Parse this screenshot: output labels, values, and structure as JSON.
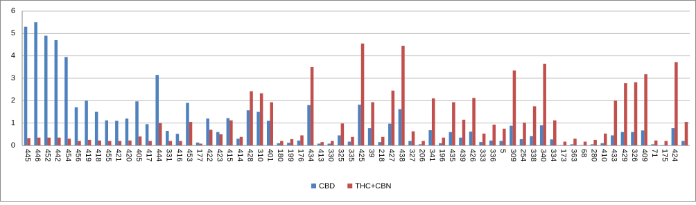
{
  "chart_data": {
    "type": "bar",
    "categories": [
      "445",
      "446",
      "452",
      "442",
      "454",
      "456",
      "419",
      "418",
      "455",
      "421",
      "420",
      "405",
      "417",
      "444",
      "331",
      "416",
      "453",
      "177",
      "422",
      "423",
      "415",
      "414",
      "428",
      "310",
      "401",
      "180",
      "199",
      "176",
      "434",
      "413",
      "330",
      "325",
      "335",
      "425",
      "39",
      "218",
      "427",
      "438",
      "327",
      "206",
      "341",
      "196",
      "435",
      "439",
      "426",
      "333",
      "336",
      "5",
      "309",
      "254",
      "338",
      "340",
      "334",
      "173",
      "363",
      "68",
      "280",
      "410",
      "433",
      "429",
      "326",
      "409",
      "71",
      "175",
      "424",
      null
    ],
    "series": [
      {
        "name": "CBD",
        "color": "#4f81bd",
        "values": [
          5.3,
          5.5,
          4.9,
          4.7,
          3.95,
          1.7,
          2.0,
          1.5,
          1.12,
          1.1,
          1.2,
          1.97,
          0.95,
          3.15,
          0.65,
          0.52,
          1.9,
          0.13,
          1.2,
          0.6,
          1.22,
          0.3,
          1.57,
          1.5,
          1.1,
          0.1,
          0.12,
          0.22,
          1.8,
          0.08,
          0.08,
          0.45,
          0.17,
          1.82,
          0.77,
          0.15,
          0.97,
          1.62,
          0.2,
          0.05,
          0.68,
          0.1,
          0.6,
          0.35,
          0.62,
          0.15,
          0.22,
          0.2,
          0.88,
          0.28,
          0.42,
          0.9,
          0.27,
          0.02,
          0.05,
          0.02,
          0.05,
          0.1,
          0.45,
          0.6,
          0.6,
          0.67,
          0.05,
          0.02,
          0.77,
          0.2
        ]
      },
      {
        "name": "THC+CBN",
        "color": "#c0504d",
        "values": [
          0.33,
          0.35,
          0.35,
          0.35,
          0.3,
          0.2,
          0.25,
          0.22,
          0.2,
          0.2,
          0.22,
          0.4,
          0.2,
          1.0,
          0.2,
          0.2,
          1.05,
          0.08,
          0.7,
          0.5,
          1.12,
          0.38,
          2.42,
          2.33,
          1.93,
          0.2,
          0.28,
          0.45,
          3.5,
          0.15,
          0.2,
          0.98,
          0.38,
          4.55,
          1.93,
          0.38,
          2.45,
          4.45,
          0.63,
          0.2,
          2.1,
          0.35,
          1.93,
          1.15,
          2.12,
          0.53,
          0.93,
          0.75,
          3.35,
          1.02,
          1.75,
          3.65,
          1.12,
          0.17,
          0.3,
          0.17,
          0.25,
          0.53,
          2.0,
          2.78,
          2.82,
          3.18,
          0.22,
          0.2,
          3.72,
          1.05
        ]
      }
    ],
    "ylim": [
      0,
      6
    ],
    "yticks": [
      0,
      1,
      2,
      3,
      4,
      5,
      6
    ],
    "grid": true,
    "legend": "bottom"
  }
}
